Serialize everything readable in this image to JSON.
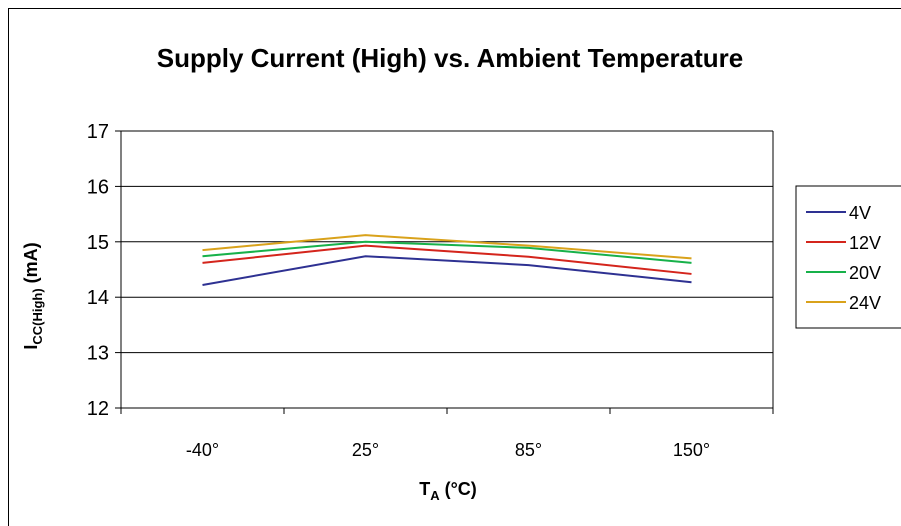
{
  "chart_data": {
    "type": "line",
    "title": "Supply Current (High) vs. Ambient Temperature",
    "xlabel": {
      "main": "T",
      "sub": "A",
      "unit": " (°C)"
    },
    "ylabel": {
      "main": "I",
      "sub": "CC(High)",
      "unit": " (mA)"
    },
    "categories": [
      "-40°",
      "25°",
      "85°",
      "150°"
    ],
    "ylim": [
      12,
      17
    ],
    "yticks": [
      "12",
      "13",
      "14",
      "15",
      "16",
      "17"
    ],
    "grid": true,
    "legend_position": "right",
    "series": [
      {
        "name": "4V",
        "color": "#2e3192",
        "values": [
          14.22,
          14.74,
          14.58,
          14.27
        ]
      },
      {
        "name": "12V",
        "color": "#d4251c",
        "values": [
          14.62,
          14.93,
          14.73,
          14.42
        ]
      },
      {
        "name": "20V",
        "color": "#17b14a",
        "values": [
          14.74,
          15.0,
          14.89,
          14.62
        ]
      },
      {
        "name": "24V",
        "color": "#d9a21b",
        "values": [
          14.85,
          15.12,
          14.93,
          14.7
        ]
      }
    ]
  }
}
